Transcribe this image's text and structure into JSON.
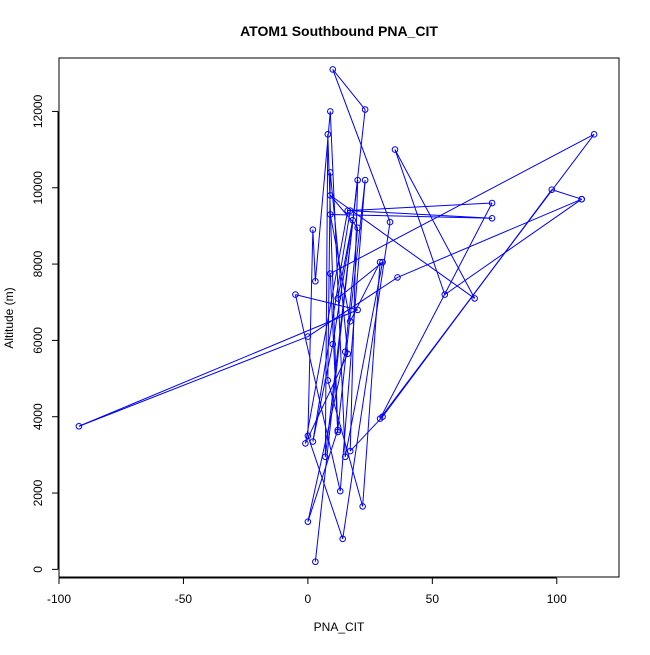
{
  "chart_data": {
    "type": "line",
    "title": "ATOM1 Southbound PNA_CIT",
    "xlabel": "PNA_CIT",
    "ylabel": "Altitude (m)",
    "xlim": [
      -100,
      125
    ],
    "ylim": [
      -200,
      13400
    ],
    "x_ticks": [
      -100,
      -50,
      0,
      50,
      100
    ],
    "y_ticks": [
      0,
      2000,
      4000,
      6000,
      8000,
      10000,
      12000
    ],
    "series": [
      {
        "color": "#0000ff",
        "marker": "open-circle",
        "points": [
          {
            "x": 3,
            "y": 200
          },
          {
            "x": 23,
            "y": 12050
          },
          {
            "x": 10,
            "y": 13100
          },
          {
            "x": 33,
            "y": 9100
          },
          {
            "x": 14,
            "y": 800
          },
          {
            "x": 0,
            "y": 3500
          },
          {
            "x": 2,
            "y": 8900
          },
          {
            "x": 3,
            "y": 7550
          },
          {
            "x": 9,
            "y": 12000
          },
          {
            "x": 15,
            "y": 2950
          },
          {
            "x": 30,
            "y": 8050
          },
          {
            "x": 12,
            "y": 7100
          },
          {
            "x": 18,
            "y": 9150
          },
          {
            "x": 10,
            "y": 5900
          },
          {
            "x": 2,
            "y": 3350
          },
          {
            "x": 17,
            "y": 9400
          },
          {
            "x": 74,
            "y": 9200
          },
          {
            "x": 9,
            "y": 9300
          },
          {
            "x": 17,
            "y": 6500
          },
          {
            "x": 29,
            "y": 8050
          },
          {
            "x": 22,
            "y": 1650
          },
          {
            "x": 8,
            "y": 4950
          },
          {
            "x": 9,
            "y": 10400
          },
          {
            "x": 16,
            "y": 5650
          },
          {
            "x": -1,
            "y": 3300
          },
          {
            "x": 16,
            "y": 9400
          },
          {
            "x": 74,
            "y": 9600
          },
          {
            "x": 29,
            "y": 3950
          },
          {
            "x": 115,
            "y": 11400
          },
          {
            "x": 9,
            "y": 7750
          },
          {
            "x": 12,
            "y": 3600
          },
          {
            "x": 8,
            "y": 11400
          },
          {
            "x": 7,
            "y": 2950
          },
          {
            "x": 20,
            "y": 10200
          },
          {
            "x": 17,
            "y": 3100
          },
          {
            "x": 30,
            "y": 4000
          },
          {
            "x": 98,
            "y": 9950
          },
          {
            "x": 110,
            "y": 9700
          },
          {
            "x": 36,
            "y": 7650
          },
          {
            "x": 0,
            "y": 6100
          },
          {
            "x": -92,
            "y": 3750
          },
          {
            "x": 20,
            "y": 6800
          },
          {
            "x": -5,
            "y": 7200
          },
          {
            "x": 13,
            "y": 2050
          },
          {
            "x": 23,
            "y": 10200
          },
          {
            "x": 12,
            "y": 3650
          },
          {
            "x": 0,
            "y": 1250
          },
          {
            "x": 15,
            "y": 5700
          },
          {
            "x": 20,
            "y": 8950
          },
          {
            "x": 9,
            "y": 9800
          },
          {
            "x": 67,
            "y": 7100
          },
          {
            "x": 35,
            "y": 11000
          },
          {
            "x": 55,
            "y": 7200
          },
          {
            "x": 110,
            "y": 9700
          }
        ]
      }
    ]
  }
}
